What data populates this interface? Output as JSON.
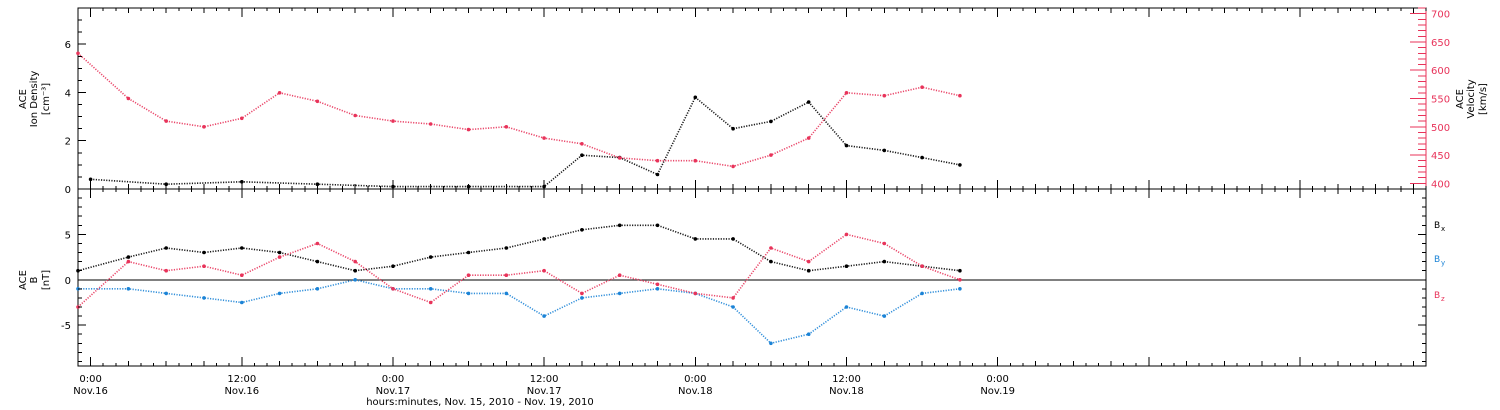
{
  "colors": {
    "black": "#000000",
    "red": "#e8335a",
    "blue": "#1b83d6"
  },
  "xaxis": {
    "title": "hours:minutes, Nov. 15, 2010 - Nov. 19, 2010",
    "range_hours": [
      -1,
      106
    ],
    "labels": [
      {
        "hour": 0,
        "time": "0:00",
        "date": "Nov.16"
      },
      {
        "hour": 12,
        "time": "12:00",
        "date": "Nov.16"
      },
      {
        "hour": 24,
        "time": "0:00",
        "date": "Nov.17"
      },
      {
        "hour": 36,
        "time": "12:00",
        "date": "Nov.17"
      },
      {
        "hour": 48,
        "time": "0:00",
        "date": "Nov.18"
      },
      {
        "hour": 60,
        "time": "12:00",
        "date": "Nov.18"
      },
      {
        "hour": 72,
        "time": "0:00",
        "date": "Nov.19"
      }
    ]
  },
  "panels": {
    "top": {
      "ylabel_left": [
        "ACE",
        "Ion Density",
        "[cm⁻³]"
      ],
      "ylabel_right": [
        "ACE",
        "Velocity",
        "[km/s]"
      ],
      "left_ticks": [
        "0",
        "2",
        "4",
        "6"
      ],
      "right_ticks": [
        "400",
        "450",
        "500",
        "550",
        "600",
        "650",
        "700"
      ]
    },
    "bottom": {
      "ylabel_left": [
        "ACE",
        "B",
        "[nT]"
      ],
      "ticks": [
        "-5",
        "0",
        "5"
      ],
      "legend": [
        {
          "label": "B",
          "sub": "x",
          "color": "#000000"
        },
        {
          "label": "B",
          "sub": "y",
          "color": "#1b83d6"
        },
        {
          "label": "B",
          "sub": "z",
          "color": "#e8335a"
        }
      ]
    }
  },
  "chart_data": [
    {
      "type": "scatter",
      "title": "",
      "xlabel": "hours:minutes, Nov. 15, 2010 - Nov. 19, 2010",
      "ylabel": "ACE Ion Density [cm⁻³]",
      "ylim": [
        0,
        7.5
      ],
      "y2label": "ACE Velocity [km/s]",
      "y2lim": [
        390,
        710
      ],
      "series": [
        {
          "name": "",
          "axis": "left",
          "color": "#000000",
          "x": [
            "Nov.16 0:00",
            "Nov.16 6:00",
            "Nov.16 12:00",
            "Nov.16 18:00",
            "Nov.17 0:00",
            "Nov.17 6:00",
            "Nov.17 12:00",
            "Nov.17 15:00",
            "Nov.17 18:00",
            "Nov.17 21:00",
            "Nov.18 0:00",
            "Nov.18 3:00",
            "Nov.18 6:00",
            "Nov.18 9:00",
            "Nov.18 12:00",
            "Nov.18 15:00",
            "Nov.18 18:00",
            "Nov.18 21:00"
          ],
          "values": [
            0.4,
            0.2,
            0.3,
            0.2,
            0.1,
            0.1,
            0.1,
            1.4,
            1.3,
            0.6,
            3.8,
            2.5,
            2.8,
            3.6,
            1.8,
            1.6,
            1.3,
            1.0
          ]
        },
        {
          "name": "",
          "axis": "right",
          "color": "#e8335a",
          "x": [
            "Nov.15 23:00",
            "Nov.16 3:00",
            "Nov.16 6:00",
            "Nov.16 9:00",
            "Nov.16 12:00",
            "Nov.16 15:00",
            "Nov.16 18:00",
            "Nov.16 21:00",
            "Nov.17 0:00",
            "Nov.17 3:00",
            "Nov.17 6:00",
            "Nov.17 9:00",
            "Nov.17 12:00",
            "Nov.17 15:00",
            "Nov.17 18:00",
            "Nov.17 21:00",
            "Nov.18 0:00",
            "Nov.18 3:00",
            "Nov.18 6:00",
            "Nov.18 9:00",
            "Nov.18 12:00",
            "Nov.18 15:00",
            "Nov.18 18:00",
            "Nov.18 21:00"
          ],
          "values": [
            630,
            550,
            510,
            500,
            515,
            560,
            545,
            520,
            510,
            505,
            495,
            500,
            480,
            470,
            445,
            440,
            440,
            430,
            450,
            480,
            560,
            555,
            570,
            555
          ]
        }
      ]
    },
    {
      "type": "scatter",
      "title": "",
      "xlabel": "hours:minutes, Nov. 15, 2010 - Nov. 19, 2010",
      "ylabel": "ACE B [nT]",
      "ylim": [
        -9.5,
        10
      ],
      "series": [
        {
          "name": "Bx",
          "color": "#000000",
          "x": [
            "Nov.15 23:00",
            "Nov.16 3:00",
            "Nov.16 6:00",
            "Nov.16 9:00",
            "Nov.16 12:00",
            "Nov.16 15:00",
            "Nov.16 18:00",
            "Nov.16 21:00",
            "Nov.17 0:00",
            "Nov.17 3:00",
            "Nov.17 6:00",
            "Nov.17 9:00",
            "Nov.17 12:00",
            "Nov.17 15:00",
            "Nov.17 18:00",
            "Nov.17 21:00",
            "Nov.18 0:00",
            "Nov.18 3:00",
            "Nov.18 6:00",
            "Nov.18 9:00",
            "Nov.18 12:00",
            "Nov.18 15:00",
            "Nov.18 18:00",
            "Nov.18 21:00"
          ],
          "values": [
            1.0,
            2.5,
            3.5,
            3.0,
            3.5,
            3.0,
            2.0,
            1.0,
            1.5,
            2.5,
            3.0,
            3.5,
            4.5,
            5.5,
            6.0,
            6.0,
            4.5,
            4.5,
            2.0,
            1.0,
            1.5,
            2.0,
            1.5,
            1.0
          ]
        },
        {
          "name": "By",
          "color": "#1b83d6",
          "x": [
            "Nov.15 23:00",
            "Nov.16 3:00",
            "Nov.16 6:00",
            "Nov.16 9:00",
            "Nov.16 12:00",
            "Nov.16 15:00",
            "Nov.16 18:00",
            "Nov.16 21:00",
            "Nov.17 0:00",
            "Nov.17 3:00",
            "Nov.17 6:00",
            "Nov.17 9:00",
            "Nov.17 12:00",
            "Nov.17 15:00",
            "Nov.17 18:00",
            "Nov.17 21:00",
            "Nov.18 0:00",
            "Nov.18 3:00",
            "Nov.18 6:00",
            "Nov.18 9:00",
            "Nov.18 12:00",
            "Nov.18 15:00",
            "Nov.18 18:00",
            "Nov.18 21:00"
          ],
          "values": [
            -1.0,
            -1.0,
            -1.5,
            -2.0,
            -2.5,
            -1.5,
            -1.0,
            0.0,
            -1.0,
            -1.0,
            -1.5,
            -1.5,
            -4.0,
            -2.0,
            -1.5,
            -1.0,
            -1.5,
            -3.0,
            -7.0,
            -6.0,
            -3.0,
            -4.0,
            -1.5,
            -1.0
          ]
        },
        {
          "name": "Bz",
          "color": "#e8335a",
          "x": [
            "Nov.15 23:00",
            "Nov.16 3:00",
            "Nov.16 6:00",
            "Nov.16 9:00",
            "Nov.16 12:00",
            "Nov.16 15:00",
            "Nov.16 18:00",
            "Nov.16 21:00",
            "Nov.17 0:00",
            "Nov.17 3:00",
            "Nov.17 6:00",
            "Nov.17 9:00",
            "Nov.17 12:00",
            "Nov.17 15:00",
            "Nov.17 18:00",
            "Nov.17 21:00",
            "Nov.18 0:00",
            "Nov.18 3:00",
            "Nov.18 6:00",
            "Nov.18 9:00",
            "Nov.18 12:00",
            "Nov.18 15:00",
            "Nov.18 18:00",
            "Nov.18 21:00"
          ],
          "values": [
            -3.0,
            2.0,
            1.0,
            1.5,
            0.5,
            2.5,
            4.0,
            2.0,
            -1.0,
            -2.5,
            0.5,
            0.5,
            1.0,
            -1.5,
            0.5,
            -0.5,
            -1.5,
            -2.0,
            3.5,
            2.0,
            5.0,
            4.0,
            1.5,
            0.0
          ]
        }
      ]
    }
  ]
}
